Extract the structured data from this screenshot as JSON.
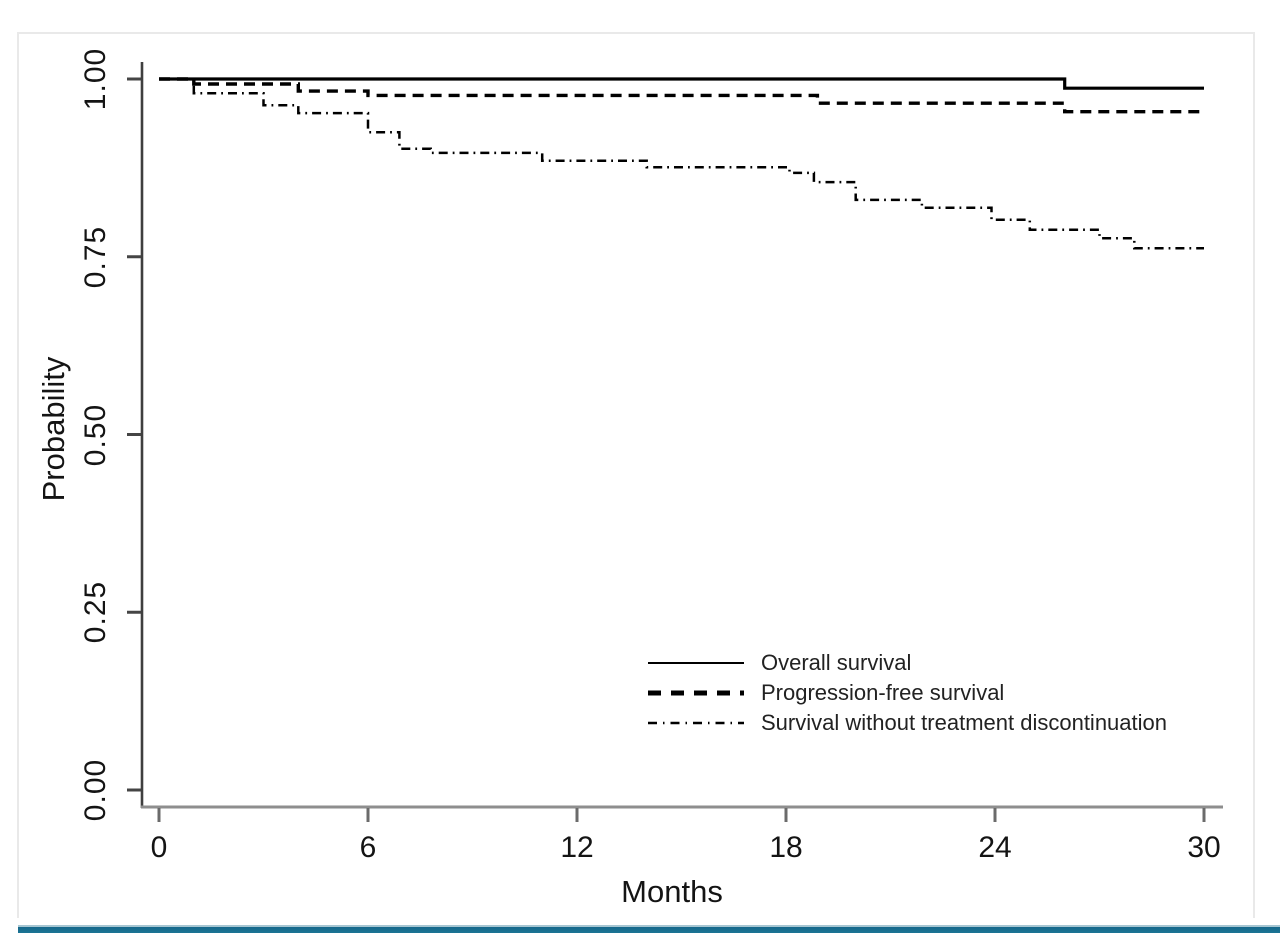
{
  "figure": {
    "accent_bar_color": "#1b7494",
    "border_color": "#e9e9e9",
    "background": "#ffffff"
  },
  "chart_data": {
    "type": "line",
    "subtype": "kaplan-meier-step",
    "title": "",
    "xlabel": "Months",
    "ylabel": "Probability",
    "xlim": [
      0,
      30
    ],
    "ylim": [
      0.0,
      1.0
    ],
    "x_ticks": [
      0,
      6,
      12,
      18,
      24,
      30
    ],
    "y_ticks": [
      "0.00",
      "0.25",
      "0.50",
      "0.75",
      "1.00"
    ],
    "grid": false,
    "line_color": "#000000",
    "legend_position": "inside-bottom-right",
    "series": [
      {
        "name": "Overall survival",
        "style": "solid",
        "points": [
          [
            0,
            1.0
          ],
          [
            26,
            1.0
          ],
          [
            26,
            0.987
          ],
          [
            30,
            0.987
          ]
        ]
      },
      {
        "name": "Progression-free survival",
        "style": "dashed",
        "points": [
          [
            0,
            1.0
          ],
          [
            1,
            1.0
          ],
          [
            1,
            0.993
          ],
          [
            4,
            0.993
          ],
          [
            4,
            0.983
          ],
          [
            6,
            0.983
          ],
          [
            6,
            0.977
          ],
          [
            18.9,
            0.977
          ],
          [
            18.9,
            0.966
          ],
          [
            26,
            0.966
          ],
          [
            26,
            0.954
          ],
          [
            30,
            0.954
          ]
        ]
      },
      {
        "name": "Survival without treatment discontinuation",
        "style": "dashdot",
        "points": [
          [
            0,
            1.0
          ],
          [
            1,
            1.0
          ],
          [
            1,
            0.98
          ],
          [
            3,
            0.98
          ],
          [
            3,
            0.963
          ],
          [
            4,
            0.963
          ],
          [
            4,
            0.952
          ],
          [
            6,
            0.952
          ],
          [
            6,
            0.925
          ],
          [
            6.9,
            0.925
          ],
          [
            6.9,
            0.902
          ],
          [
            7.8,
            0.902
          ],
          [
            7.8,
            0.896
          ],
          [
            11,
            0.896
          ],
          [
            11,
            0.885
          ],
          [
            14,
            0.885
          ],
          [
            14,
            0.876
          ],
          [
            18.1,
            0.876
          ],
          [
            18.1,
            0.868
          ],
          [
            18.8,
            0.868
          ],
          [
            18.8,
            0.855
          ],
          [
            20,
            0.855
          ],
          [
            20,
            0.83
          ],
          [
            21.9,
            0.83
          ],
          [
            21.9,
            0.819
          ],
          [
            23.9,
            0.819
          ],
          [
            23.9,
            0.802
          ],
          [
            25,
            0.802
          ],
          [
            25,
            0.788
          ],
          [
            27,
            0.788
          ],
          [
            27,
            0.776
          ],
          [
            28,
            0.776
          ],
          [
            28,
            0.762
          ],
          [
            30,
            0.762
          ]
        ]
      }
    ]
  }
}
